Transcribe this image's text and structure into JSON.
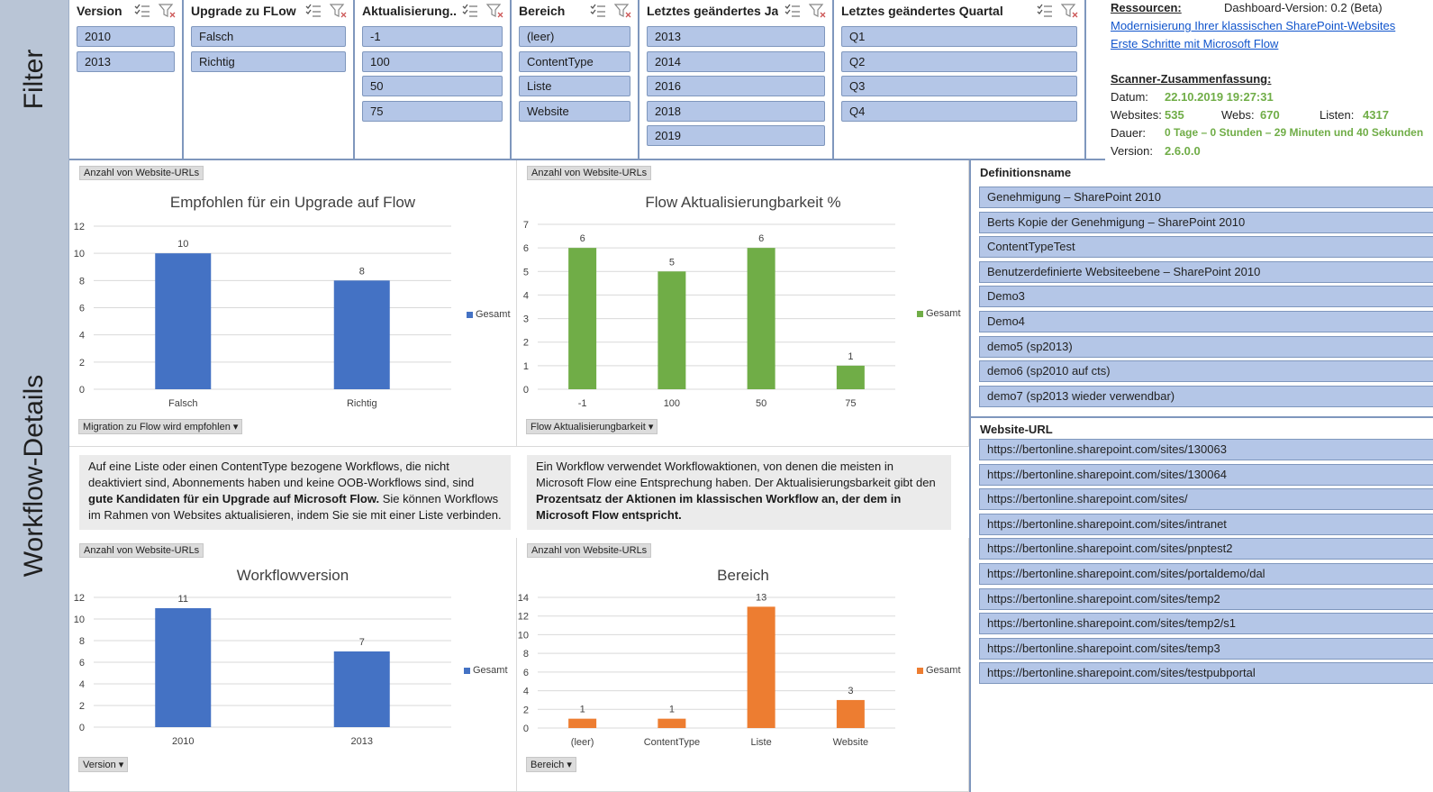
{
  "bands": {
    "filter_label": "Filter",
    "details_label": "Workflow-Details"
  },
  "slicers": [
    {
      "title": "Version",
      "items": [
        "2010",
        "2013"
      ]
    },
    {
      "title": "Upgrade zu FLow",
      "items": [
        "Falsch",
        "Richtig"
      ]
    },
    {
      "title": "Aktualisierung...",
      "items": [
        "-1",
        "100",
        "50",
        "75"
      ]
    },
    {
      "title": "Bereich",
      "items": [
        "(leer)",
        "ContentType",
        "Liste",
        "Website"
      ]
    },
    {
      "title": "Letztes geändertes Jahr",
      "items": [
        "2013",
        "2014",
        "2016",
        "2018",
        "2019"
      ]
    },
    {
      "title": "Letztes geändertes Quartal",
      "items": [
        "Q1",
        "Q2",
        "Q3",
        "Q4"
      ]
    }
  ],
  "resources": {
    "label": "Ressourcen:",
    "dashboard_version": "Dashboard-Version: 0.2 (Beta)",
    "link1": "Modernisierung Ihrer klassischen SharePoint-Websites",
    "link2": "Erste Schritte mit Microsoft Flow",
    "summary_label": "Scanner-Zusammenfassung:",
    "date_label": "Datum:",
    "date_value": "22.10.2019 19:27:31",
    "websites_label": "Websites:",
    "websites_value": "535",
    "webs_label": "Webs:",
    "webs_value": "670",
    "lists_label": "Listen:",
    "lists_value": "4317",
    "duration_label": "Dauer:",
    "duration_value": "0 Tage – 0 Stunden – 29 Minuten und 40 Sekunden",
    "version_label": "Version:",
    "version_value": "2.6.0.0"
  },
  "charts": {
    "c1": {
      "field_button": "Anzahl von Website-URLs",
      "axis_button": "Migration zu Flow wird empfohlen ▾",
      "legend": "Gesamt"
    },
    "c2": {
      "field_button": "Anzahl von Website-URLs",
      "axis_button": "Flow Aktualisierungbarkeit ▾",
      "legend": "Gesamt"
    },
    "c3": {
      "field_button": "Anzahl von Website-URLs",
      "axis_button": "Version ▾",
      "legend": "Gesamt"
    },
    "c4": {
      "field_button": "Anzahl von Website-URLs",
      "axis_button": "Bereich ▾",
      "legend": "Gesamt"
    }
  },
  "chart_data": [
    {
      "type": "bar",
      "title": "Empfohlen für ein Upgrade auf Flow",
      "categories": [
        "Falsch",
        "Richtig"
      ],
      "values": [
        10,
        8
      ],
      "ylim": [
        0,
        12
      ],
      "yticks": [
        0,
        2,
        4,
        6,
        8,
        10,
        12
      ],
      "color": "#4472c4",
      "legend": "Gesamt"
    },
    {
      "type": "bar",
      "title": "Flow Aktualisierungbarkeit %",
      "categories": [
        "-1",
        "100",
        "50",
        "75"
      ],
      "values": [
        6,
        5,
        6,
        1
      ],
      "ylim": [
        0,
        7
      ],
      "yticks": [
        0,
        1,
        2,
        3,
        4,
        5,
        6,
        7
      ],
      "color": "#70ad47",
      "legend": "Gesamt"
    },
    {
      "type": "bar",
      "title": "Workflowversion",
      "categories": [
        "2010",
        "2013"
      ],
      "values": [
        11,
        7
      ],
      "ylim": [
        0,
        12
      ],
      "yticks": [
        0,
        2,
        4,
        6,
        8,
        10,
        12
      ],
      "color": "#4472c4",
      "legend": "Gesamt"
    },
    {
      "type": "bar",
      "title": "Bereich",
      "categories": [
        "(leer)",
        "ContentType",
        "Liste",
        "Website"
      ],
      "values": [
        1,
        1,
        13,
        3
      ],
      "ylim": [
        0,
        14
      ],
      "yticks": [
        0,
        2,
        4,
        6,
        8,
        10,
        12,
        14
      ],
      "color": "#ed7d31",
      "legend": "Gesamt"
    }
  ],
  "descriptions": {
    "left_plain1": "Auf eine Liste oder einen ContentType bezogene Workflows, die nicht deaktiviert sind, Abonnements haben und keine OOB-Workflows sind, sind ",
    "left_bold": "gute Kandidaten für ein Upgrade auf Microsoft Flow.",
    "left_plain2": " Sie können Workflows im Rahmen von Websites aktualisieren, indem Sie sie mit einer Liste verbinden.",
    "right_plain": "Ein Workflow verwendet Workflowaktionen, von denen die meisten in Microsoft Flow eine Entsprechung haben. Der Aktualisierungsbarkeit gibt den ",
    "right_bold": "Prozentsatz der Aktionen im klassischen Workflow an, der dem in Microsoft Flow entspricht."
  },
  "definitions": {
    "title": "Definitionsname",
    "items": [
      "Genehmigung – SharePoint 2010",
      "Berts Kopie der Genehmigung – SharePoint 2010",
      "ContentTypeTest",
      "Benutzerdefinierte Websiteebene – SharePoint 2010",
      "Demo3",
      "Demo4",
      "demo5 (sp2013)",
      "demo6 (sp2010 auf cts)",
      "demo7 (sp2013 wieder verwendbar)"
    ]
  },
  "urls": {
    "title": "Website-URL",
    "items": [
      "https://bertonline.sharepoint.com/sites/130063",
      "https://bertonline.sharepoint.com/sites/130064",
      "https://bertonline.sharepoint.com/sites/",
      "https://bertonline.sharepoint.com/sites/intranet",
      "https://bertonline.sharepoint.com/sites/pnptest2",
      "https://bertonline.sharepoint.com/sites/portaldemo/dal",
      "https://bertonline.sharepoint.com/sites/temp2",
      "https://bertonline.sharepoint.com/sites/temp2/s1",
      "https://bertonline.sharepoint.com/sites/temp3",
      "https://bertonline.sharepoint.com/sites/testpubportal"
    ]
  }
}
